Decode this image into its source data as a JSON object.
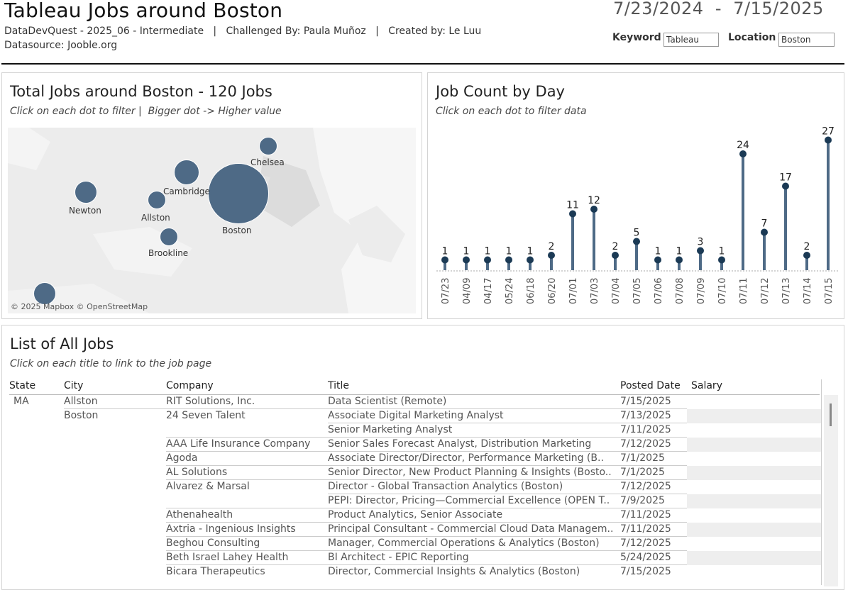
{
  "header": {
    "title": "Tableau Jobs around Boston",
    "subtitle": "DataDevQuest - 2025_06 - Intermediate   |   Challenged By: Paula Muñoz   |   Created by: Le Luu",
    "datasource": "Datasource: Jooble.org",
    "date_range": "7/23/2024  -  7/15/2025",
    "keyword_label": "Keyword",
    "keyword_value": "Tableau",
    "location_label": "Location",
    "location_value": "Boston"
  },
  "map_panel": {
    "title": "Total Jobs around Boston - 120 Jobs",
    "subtitle": "Click on each dot to filter |  Bigger dot -> Higher value",
    "credit": "© 2025 Mapbox © OpenStreetMap",
    "locations": [
      {
        "name": "Boston",
        "label": "Boston"
      },
      {
        "name": "Cambridge",
        "label": "Cambridge"
      },
      {
        "name": "Chelsea",
        "label": "Chelsea"
      },
      {
        "name": "Newton",
        "label": "Newton"
      },
      {
        "name": "Allston",
        "label": "Allston"
      },
      {
        "name": "Brookline",
        "label": "Brookline"
      },
      {
        "name": "unlabeled-south",
        "label": ""
      }
    ]
  },
  "bar_panel": {
    "title": "Job Count by Day",
    "subtitle": "Click on each dot to filter data"
  },
  "chart_data": {
    "type": "line",
    "mark": "lollipop",
    "categories": [
      "07/23",
      "04/09",
      "04/17",
      "05/24",
      "06/18",
      "06/20",
      "07/01",
      "07/03",
      "07/04",
      "07/05",
      "07/06",
      "07/08",
      "07/09",
      "07/10",
      "07/11",
      "07/12",
      "07/13",
      "07/14",
      "07/15"
    ],
    "values": [
      1,
      1,
      1,
      1,
      1,
      2,
      11,
      12,
      2,
      5,
      1,
      1,
      3,
      1,
      24,
      7,
      17,
      2,
      27
    ],
    "ylim": [
      0,
      28
    ],
    "color": "#4e6a86",
    "dot_color": "#1b3a55"
  },
  "list_panel": {
    "title": "List of All Jobs",
    "subtitle": "Click on each title to link to the job page",
    "columns": [
      "State",
      "City",
      "Company",
      "Title",
      "Posted Date",
      "Salary"
    ],
    "rows": [
      {
        "state": "MA",
        "city": "Allston",
        "company": "RIT Solutions, Inc.",
        "title": "Data Scientist (Remote)",
        "date": "7/15/2025"
      },
      {
        "state": "",
        "city": "Boston",
        "company": "24 Seven Talent",
        "title": "Associate Digital Marketing Analyst",
        "date": "7/13/2025"
      },
      {
        "state": "",
        "city": "",
        "company": "",
        "title": "Senior Marketing Analyst",
        "date": "7/11/2025"
      },
      {
        "state": "",
        "city": "",
        "company": "AAA Life Insurance Company",
        "title": "Senior Sales Forecast Analyst, Distribution Marketing",
        "date": "7/12/2025"
      },
      {
        "state": "",
        "city": "",
        "company": "Agoda",
        "title": "Associate Director/Director, Performance Marketing (B..",
        "date": "7/1/2025"
      },
      {
        "state": "",
        "city": "",
        "company": "AL Solutions",
        "title": "Senior Director, New Product Planning & Insights (Bosto..",
        "date": "7/1/2025"
      },
      {
        "state": "",
        "city": "",
        "company": "Alvarez & Marsal",
        "title": "Director - Global Transaction Analytics (Boston)",
        "date": "7/12/2025"
      },
      {
        "state": "",
        "city": "",
        "company": "",
        "title": "PEPI: Director, Pricing—Commercial Excellence (OPEN T..",
        "date": "7/9/2025"
      },
      {
        "state": "",
        "city": "",
        "company": "Athenahealth",
        "title": "Product Analytics, Senior Associate",
        "date": "7/11/2025"
      },
      {
        "state": "",
        "city": "",
        "company": "Axtria - Ingenious Insights",
        "title": "Principal Consultant - Commercial Cloud Data Managem..",
        "date": "7/11/2025"
      },
      {
        "state": "",
        "city": "",
        "company": "Beghou Consulting",
        "title": "Manager, Commercial Operations & Analytics (Boston)",
        "date": "7/12/2025"
      },
      {
        "state": "",
        "city": "",
        "company": "Beth Israel Lahey Health",
        "title": "BI Architect - EPIC Reporting",
        "date": "5/24/2025"
      },
      {
        "state": "",
        "city": "",
        "company": "Bicara Therapeutics",
        "title": "Director, Commercial Insights & Analytics (Boston)",
        "date": "7/15/2025"
      }
    ]
  }
}
